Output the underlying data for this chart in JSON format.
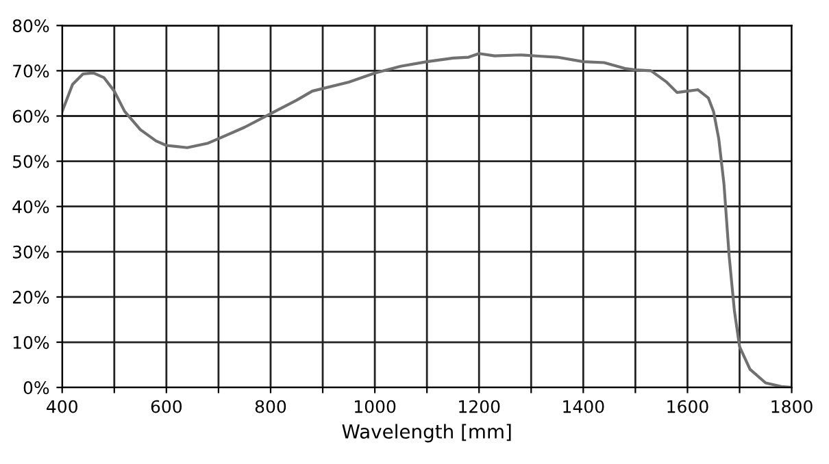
{
  "chart_data": {
    "type": "line",
    "xlabel": "Wavelength [mm]",
    "x": [
      400,
      410,
      420,
      440,
      460,
      480,
      500,
      520,
      550,
      580,
      600,
      640,
      680,
      700,
      750,
      800,
      850,
      880,
      950,
      1000,
      1050,
      1100,
      1150,
      1180,
      1200,
      1230,
      1280,
      1320,
      1350,
      1400,
      1440,
      1480,
      1500,
      1530,
      1560,
      1580,
      1600,
      1620,
      1640,
      1650,
      1660,
      1670,
      1680,
      1690,
      1700,
      1720,
      1750,
      1780,
      1800
    ],
    "series": [
      {
        "color": "#707070",
        "values": [
          61,
          64,
          67,
          69.3,
          69.5,
          68.5,
          65.5,
          61,
          57,
          54.5,
          53.5,
          53,
          54,
          55,
          57.5,
          60.5,
          63.5,
          65.5,
          67.5,
          69.5,
          71,
          72,
          72.8,
          73,
          73.8,
          73.3,
          73.5,
          73.2,
          73,
          72,
          71.8,
          70.5,
          70.2,
          70,
          67.5,
          65.2,
          65.5,
          65.8,
          64,
          61,
          55,
          45,
          29,
          17,
          9,
          4,
          1,
          0.2,
          0
        ]
      }
    ],
    "xlim": [
      400,
      1800
    ],
    "xticks": [
      400,
      {
        "value": 500,
        "label": null
      },
      600,
      {
        "value": 700,
        "label": null
      },
      800,
      {
        "value": 900,
        "label": null
      },
      1000,
      {
        "value": 1100,
        "label": null
      },
      1200,
      {
        "value": 1300,
        "label": null
      },
      1400,
      {
        "value": 1500,
        "label": null
      },
      1600,
      {
        "value": 1700,
        "label": null
      },
      1800
    ],
    "ylim": [
      0,
      80
    ],
    "yticks": [
      {
        "value": 0,
        "label": "0%"
      },
      {
        "value": 10,
        "label": "10%"
      },
      {
        "value": 20,
        "label": "20%"
      },
      {
        "value": 30,
        "label": "30%"
      },
      {
        "value": 40,
        "label": "40%"
      },
      {
        "value": 50,
        "label": "50%"
      },
      {
        "value": 60,
        "label": "60%"
      },
      {
        "value": 70,
        "label": "70%"
      },
      {
        "value": 80,
        "label": "80%"
      }
    ],
    "grid": true,
    "legend": false,
    "marker": "none",
    "line_style": "solid"
  }
}
